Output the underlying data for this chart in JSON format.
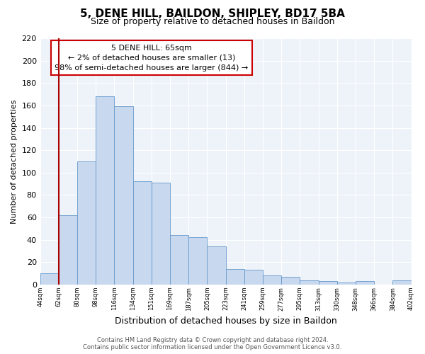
{
  "title": "5, DENE HILL, BAILDON, SHIPLEY, BD17 5BA",
  "subtitle": "Size of property relative to detached houses in Baildon",
  "xlabel": "Distribution of detached houses by size in Baildon",
  "ylabel": "Number of detached properties",
  "bar_labels": [
    "44sqm",
    "62sqm",
    "80sqm",
    "98sqm",
    "116sqm",
    "134sqm",
    "151sqm",
    "169sqm",
    "187sqm",
    "205sqm",
    "223sqm",
    "241sqm",
    "259sqm",
    "277sqm",
    "295sqm",
    "313sqm",
    "330sqm",
    "348sqm",
    "366sqm",
    "384sqm",
    "402sqm"
  ],
  "bar_values": [
    10,
    62,
    110,
    168,
    159,
    92,
    91,
    44,
    42,
    34,
    14,
    13,
    8,
    7,
    4,
    3,
    2,
    3,
    0,
    4
  ],
  "bar_color": "#c8d8ee",
  "bar_edge_color": "#6699cc",
  "annotation_box_title": "5 DENE HILL: 65sqm",
  "annotation_line1": "← 2% of detached houses are smaller (13)",
  "annotation_line2": "98% of semi-detached houses are larger (844) →",
  "property_line_color": "#aa0000",
  "ylim": [
    0,
    220
  ],
  "yticks": [
    0,
    20,
    40,
    60,
    80,
    100,
    120,
    140,
    160,
    180,
    200,
    220
  ],
  "footer_line1": "Contains HM Land Registry data © Crown copyright and database right 2024.",
  "footer_line2": "Contains public sector information licensed under the Open Government Licence v3.0.",
  "background_color": "#ffffff",
  "plot_bg_color": "#eef3fa",
  "grid_color": "#ffffff"
}
